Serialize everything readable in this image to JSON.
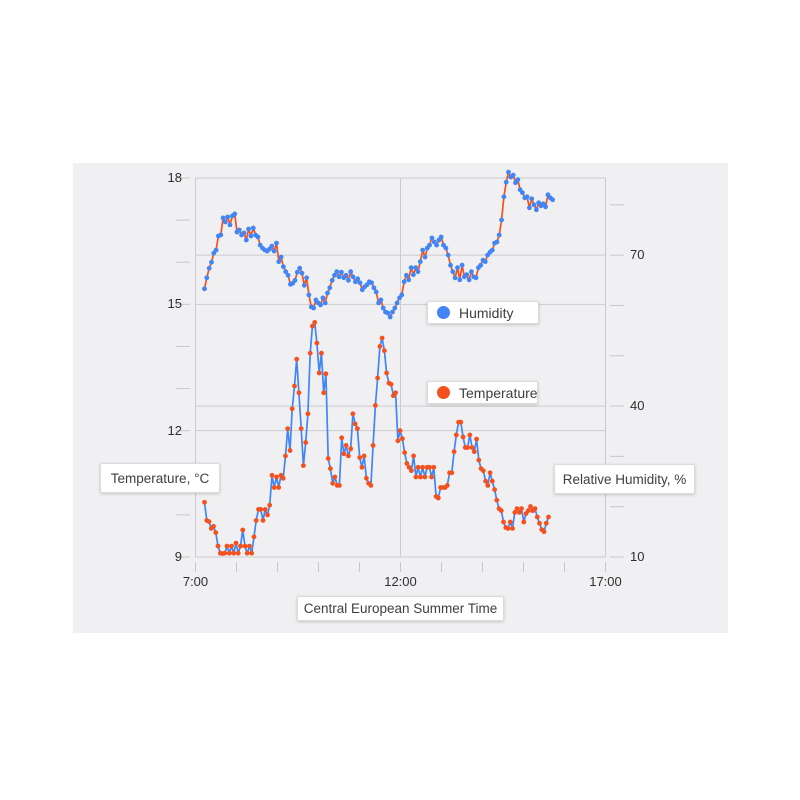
{
  "colors": {
    "humidity_marker": "#4285f4",
    "humidity_line": "#f4511e",
    "temperature_marker": "#f4511e",
    "temperature_line": "#4285f4",
    "panel_background": "#f0f0f2",
    "gridline": "#c9cbce",
    "tick": "#c5c7ca",
    "axis_text": "#2e2e2e",
    "box_text": "#3e3e3e"
  },
  "chart_data": {
    "type": "line",
    "title": "",
    "x_axis": {
      "title": "Central European Summer Time",
      "range": [
        7,
        17
      ],
      "major_tick_hours": [
        7,
        12,
        17
      ],
      "major_tick_labels": [
        "7:00",
        "12:00",
        "17:00"
      ],
      "minor_tick_hours": [
        7,
        8,
        9,
        10,
        11,
        12,
        13,
        14,
        15,
        16,
        17
      ],
      "grid_hours": [
        7,
        12,
        17
      ]
    },
    "y_left": {
      "title": "Temperature, °C",
      "range": [
        9,
        18
      ],
      "major_tick_values": [
        9,
        12,
        15,
        18
      ],
      "major_tick_labels": [
        "9",
        "12",
        "15",
        "18"
      ],
      "minor_tick_values": [
        9,
        10,
        11,
        12,
        13,
        14,
        15,
        16,
        17,
        18
      ],
      "grid_values": [
        12,
        15,
        18
      ]
    },
    "y_right": {
      "title": "Relative Humidity, %",
      "range": [
        10,
        85.33
      ],
      "major_tick_values": [
        10,
        40,
        70
      ],
      "major_tick_labels": [
        "10",
        "40",
        "70"
      ],
      "minor_tick_values": [
        10,
        20,
        30,
        40,
        50,
        60,
        70,
        80
      ],
      "grid_values": [
        40,
        70
      ]
    },
    "legend_position": "inside-plot",
    "grid": true,
    "series": [
      {
        "name": "Humidity",
        "axis": "right",
        "marker_color": "#4285f4",
        "line_color": "#f4511e",
        "start_hour": 7.22,
        "end_hour": 15.71,
        "values": [
          63.3,
          65.5,
          67.4,
          68.6,
          70.4,
          71.0,
          73.8,
          74.0,
          77.4,
          76.6,
          77.6,
          76.0,
          77.8,
          78.2,
          74.6,
          75.0,
          74.0,
          74.4,
          73.0,
          75.2,
          73.8,
          75.4,
          74.0,
          73.6,
          72.0,
          71.4,
          71.0,
          70.8,
          71.2,
          71.8,
          70.8,
          72.4,
          68.7,
          69.6,
          67.7,
          66.7,
          66.0,
          64.2,
          64.4,
          65.0,
          66.6,
          67.4,
          66.4,
          64.0,
          65.5,
          62.1,
          59.7,
          59.5,
          61.1,
          60.5,
          60.1,
          61.5,
          60.5,
          62.5,
          63.5,
          65.0,
          66.0,
          66.7,
          65.7,
          66.6,
          65.5,
          66.0,
          65.0,
          66.7,
          65.7,
          64.7,
          65.3,
          64.5,
          63.1,
          63.7,
          64.1,
          64.7,
          64.5,
          63.5,
          62.7,
          60.5,
          61.1,
          59.5,
          58.7,
          58.5,
          57.7,
          58.7,
          59.5,
          60.5,
          61.5,
          62.1,
          64.7,
          66.0,
          65.1,
          67.5,
          66.1,
          67.5,
          66.7,
          68.7,
          71.0,
          69.6,
          71.4,
          72.0,
          73.4,
          72.6,
          72.0,
          73.0,
          73.6,
          72.0,
          71.4,
          70.0,
          68.0,
          66.7,
          65.5,
          67.5,
          65.1,
          68.0,
          65.7,
          66.1,
          65.1,
          66.7,
          65.7,
          65.5,
          67.5,
          68.0,
          69.0,
          68.7,
          70.0,
          70.6,
          71.0,
          72.4,
          72.6,
          74.0,
          77.0,
          81.6,
          84.5,
          86.5,
          85.5,
          85.9,
          84.4,
          85.0,
          83.0,
          82.4,
          81.4,
          81.6,
          79.4,
          81.2,
          80.0,
          79.0,
          80.4,
          79.8,
          80.2,
          79.6,
          82.0,
          81.4,
          81.0
        ]
      },
      {
        "name": "Temperature",
        "axis": "left",
        "marker_color": "#f4511e",
        "line_color": "#4285f4",
        "start_hour": 7.22,
        "end_hour": 15.61,
        "values": [
          10.3,
          9.87,
          9.84,
          9.68,
          9.73,
          9.58,
          9.26,
          9.09,
          9.08,
          9.09,
          9.26,
          9.09,
          9.26,
          9.09,
          9.33,
          9.09,
          9.26,
          9.64,
          9.26,
          9.09,
          9.26,
          9.09,
          9.48,
          9.87,
          10.13,
          10.13,
          9.87,
          10.13,
          10.0,
          10.23,
          10.94,
          10.65,
          10.9,
          10.65,
          10.94,
          10.87,
          11.4,
          12.05,
          11.53,
          12.52,
          13.06,
          13.7,
          12.9,
          12.05,
          11.17,
          11.72,
          12.4,
          13.84,
          14.48,
          14.57,
          14.08,
          13.37,
          13.84,
          12.9,
          13.35,
          11.34,
          11.1,
          10.75,
          10.9,
          10.7,
          10.7,
          11.83,
          11.45,
          11.65,
          11.4,
          11.57,
          12.4,
          12.16,
          12.05,
          11.36,
          11.13,
          11.4,
          10.87,
          10.75,
          10.7,
          11.65,
          12.6,
          13.25,
          14.0,
          14.2,
          13.9,
          13.37,
          13.13,
          13.1,
          12.83,
          12.9,
          11.76,
          12.0,
          11.81,
          11.48,
          11.22,
          11.13,
          11.05,
          11.4,
          10.9,
          11.13,
          10.9,
          11.13,
          10.9,
          11.13,
          11.13,
          10.9,
          11.13,
          10.44,
          10.4,
          10.65,
          10.65,
          10.65,
          10.7,
          11.0,
          11.0,
          11.5,
          11.9,
          12.2,
          12.2,
          11.85,
          11.6,
          11.6,
          11.9,
          11.6,
          11.5,
          11.8,
          11.3,
          11.1,
          11.05,
          10.8,
          10.7,
          11.0,
          10.8,
          10.6,
          10.35,
          10.15,
          10.1,
          9.83,
          9.7,
          9.68,
          9.83,
          9.68,
          10.06,
          10.15,
          10.06,
          10.15,
          9.83,
          10.03,
          10.1,
          10.2,
          10.1,
          10.15,
          9.95,
          9.8,
          9.65,
          9.6,
          9.8,
          9.95
        ]
      }
    ]
  }
}
